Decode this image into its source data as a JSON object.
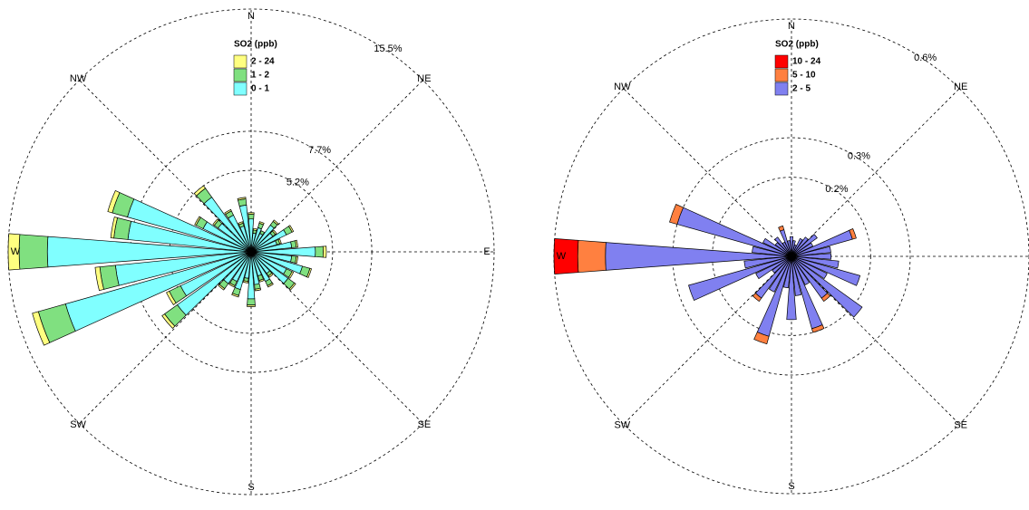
{
  "chart_data": [
    {
      "type": "windrose",
      "legend_title": "SO2 (ppb)",
      "compass": [
        "N",
        "NE",
        "E",
        "SE",
        "S",
        "SW",
        "W",
        "NW"
      ],
      "directions": [
        0,
        10,
        20,
        30,
        40,
        50,
        60,
        70,
        80,
        90,
        100,
        110,
        120,
        130,
        140,
        150,
        160,
        170,
        180,
        190,
        200,
        210,
        220,
        230,
        240,
        250,
        260,
        270,
        280,
        290,
        300,
        310,
        320,
        330,
        340,
        350
      ],
      "rlim": [
        0,
        15.5
      ],
      "rticks": [
        {
          "value": 5.2,
          "label": "5.2%"
        },
        {
          "value": 7.7,
          "label": "7.7%"
        },
        {
          "value": 15.5,
          "label": "15.5%"
        }
      ],
      "series": [
        {
          "name": "0 - 1",
          "color": "#80ffff",
          "values": [
            2.1,
            1.2,
            1.6,
            1.3,
            2.1,
            1.7,
            2.5,
            1.7,
            2.6,
            4.1,
            2.6,
            3.4,
            2.5,
            2.9,
            1.7,
            2.1,
            1.6,
            2.1,
            3.0,
            1.7,
            2.5,
            2.1,
            2.5,
            5.8,
            5.0,
            12.3,
            8.7,
            13.0,
            7.9,
            8.2,
            3.4,
            2.6,
            4.3,
            2.6,
            1.7,
            3.0
          ]
        },
        {
          "name": "1 - 2",
          "color": "#80e080",
          "values": [
            0.3,
            0.2,
            0.3,
            0.2,
            0.3,
            0.2,
            0.4,
            0.2,
            0.3,
            0.5,
            0.3,
            0.5,
            0.4,
            0.5,
            0.2,
            0.3,
            0.3,
            0.3,
            0.4,
            0.2,
            0.4,
            0.3,
            0.4,
            1.0,
            0.8,
            1.8,
            1.0,
            1.8,
            0.9,
            1.0,
            0.5,
            0.3,
            0.7,
            0.3,
            0.2,
            0.4
          ]
        },
        {
          "name": "2 - 24",
          "color": "#ffff80",
          "values": [
            0.1,
            0.1,
            0.1,
            0.0,
            0.1,
            0.1,
            0.1,
            0.1,
            0.1,
            0.2,
            0.1,
            0.1,
            0.1,
            0.1,
            0.1,
            0.1,
            0.1,
            0.1,
            0.1,
            0.1,
            0.1,
            0.1,
            0.1,
            0.2,
            0.2,
            0.4,
            0.3,
            0.7,
            0.2,
            0.3,
            0.1,
            0.1,
            0.2,
            0.1,
            0.1,
            0.1
          ]
        }
      ]
    },
    {
      "type": "windrose",
      "legend_title": "SO2 (ppb)",
      "compass": [
        "N",
        "NE",
        null,
        "SE",
        "S",
        "SW",
        "W",
        "NW"
      ],
      "directions": [
        0,
        10,
        20,
        30,
        40,
        50,
        60,
        70,
        80,
        90,
        100,
        110,
        120,
        130,
        140,
        150,
        160,
        170,
        180,
        190,
        200,
        210,
        220,
        230,
        240,
        250,
        260,
        270,
        280,
        290,
        300,
        310,
        320,
        330,
        340,
        350
      ],
      "rlim": [
        0,
        0.6
      ],
      "rticks": [
        {
          "value": 0.2,
          "label": "0.2%"
        },
        {
          "value": 0.3,
          "label": "0.3%"
        },
        {
          "value": 0.6,
          "label": "0.6%"
        }
      ],
      "series": [
        {
          "name": "2 - 5",
          "color": "#8080f0",
          "values": [
            0.05,
            0.04,
            0.03,
            0.05,
            0.06,
            0.08,
            0.06,
            0.16,
            0.1,
            0.1,
            0.12,
            0.18,
            0.1,
            0.22,
            0.13,
            0.08,
            0.19,
            0.1,
            0.16,
            0.08,
            0.21,
            0.1,
            0.13,
            0.06,
            0.1,
            0.27,
            0.12,
            0.47,
            0.1,
            0.3,
            0.08,
            0.05,
            0.06,
            0.04,
            0.07,
            0.04
          ]
        },
        {
          "name": "5 - 10",
          "color": "#ff8040",
          "values": [
            0,
            0,
            0,
            0,
            0,
            0,
            0,
            0.01,
            0,
            0,
            0,
            0,
            0,
            0,
            0.01,
            0,
            0.01,
            0,
            0,
            0,
            0.02,
            0,
            0.01,
            0,
            0,
            0,
            0,
            0.07,
            0,
            0.02,
            0,
            0,
            0,
            0,
            0.01,
            0
          ]
        },
        {
          "name": "10 - 24",
          "color": "#ff0000",
          "values": [
            0,
            0,
            0,
            0,
            0,
            0,
            0,
            0,
            0,
            0,
            0,
            0,
            0,
            0,
            0,
            0,
            0,
            0,
            0,
            0,
            0,
            0,
            0,
            0,
            0,
            0,
            0,
            0.06,
            0,
            0,
            0,
            0,
            0,
            0,
            0,
            0
          ]
        }
      ]
    }
  ]
}
